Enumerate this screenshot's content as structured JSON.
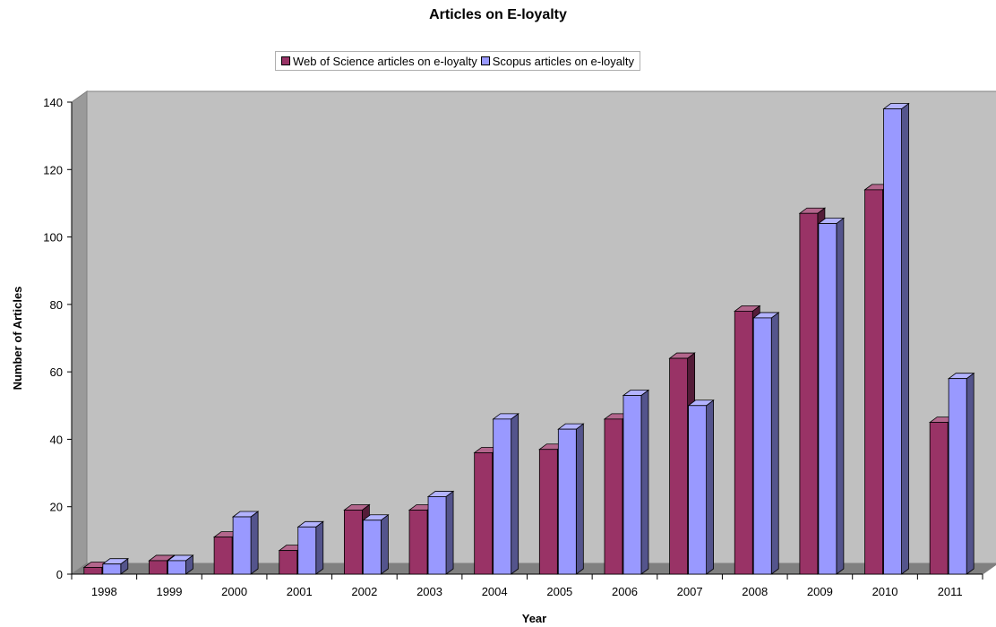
{
  "chart_data": {
    "type": "bar",
    "title": "Articles on E-loyalty",
    "xlabel": "Year",
    "ylabel": "Number of Articles",
    "ylim": [
      0,
      140
    ],
    "yticks": [
      "0",
      "20",
      "40",
      "60",
      "80",
      "100",
      "120",
      "140"
    ],
    "categories": [
      "1998",
      "1999",
      "2000",
      "2001",
      "2002",
      "2003",
      "2004",
      "2005",
      "2006",
      "2007",
      "2008",
      "2009",
      "2010",
      "2011"
    ],
    "series": [
      {
        "name": "Web of Science articles on e-loyalty",
        "color": "#993366",
        "values": [
          2,
          4,
          11,
          7,
          19,
          19,
          36,
          37,
          46,
          64,
          78,
          107,
          114,
          45
        ]
      },
      {
        "name": "Scopus articles on e-loyalty",
        "color": "#9999ff",
        "values": [
          3,
          4,
          17,
          14,
          16,
          23,
          46,
          43,
          53,
          50,
          76,
          104,
          138,
          58
        ]
      }
    ],
    "grid": false,
    "legend_position": "top"
  }
}
